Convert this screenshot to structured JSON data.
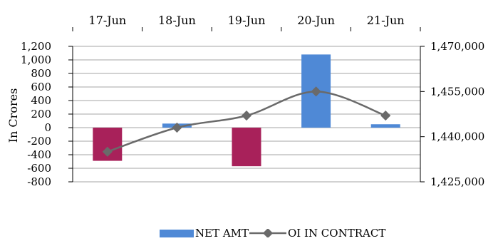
{
  "chart_data": {
    "type": "bar",
    "categories": [
      "17-Jun",
      "18-Jun",
      "19-Jun",
      "20-Jun",
      "21-Jun"
    ],
    "ylabel": "In Crores",
    "ylim": [
      -800,
      1200
    ],
    "yticks": [
      -800,
      -600,
      -400,
      -200,
      0,
      200,
      400,
      600,
      800,
      1000,
      1200
    ],
    "y2lim": [
      1425000,
      1470000
    ],
    "y2ticks": [
      1425000,
      1440000,
      1455000,
      1470000
    ],
    "grid": true,
    "legend_position": "bottom",
    "series": [
      {
        "name": "NET AMT",
        "kind": "bar",
        "axis": "left",
        "values": [
          -490,
          60,
          -570,
          1080,
          50
        ],
        "colors": [
          "#A8215A",
          "#4F89D6",
          "#A8215A",
          "#4F89D6",
          "#4F89D6"
        ]
      },
      {
        "name": "OI IN CONTRACT",
        "kind": "line",
        "axis": "right",
        "color": "#6A6A6A",
        "values": [
          1435000,
          1443000,
          1447000,
          1455000,
          1447000
        ]
      }
    ]
  },
  "legend": {
    "net_amt": "NET AMT",
    "oi_contract": "OI IN CONTRACT",
    "net_amt_color": "#4F89D6",
    "oi_color": "#6A6A6A"
  }
}
